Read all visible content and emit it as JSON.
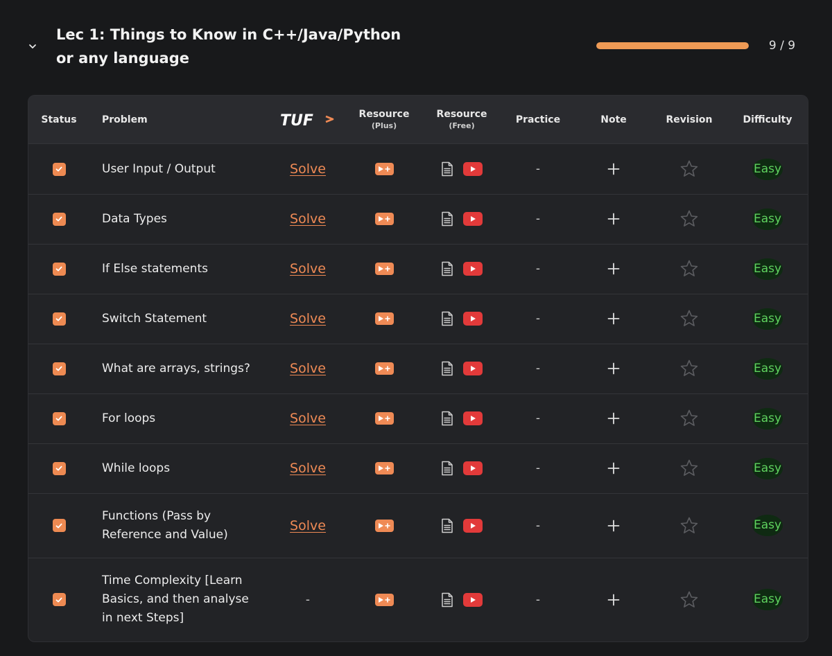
{
  "lecture": {
    "title": "Lec 1: Things to Know in C++/Java/Python or any language",
    "progress_text": "9 / 9",
    "progress_fraction": 1.0,
    "accent_color": "#ee9a55"
  },
  "table": {
    "headers": {
      "status": "Status",
      "problem": "Problem",
      "tuf_logo": "TUF",
      "resource_plus": "Resource",
      "resource_plus_sub": "(Plus)",
      "resource_free": "Resource",
      "resource_free_sub": "(Free)",
      "practice": "Practice",
      "note": "Note",
      "revision": "Revision",
      "difficulty": "Difficulty"
    },
    "rows": [
      {
        "name": "User Input / Output",
        "solve": "Solve",
        "practice": "-",
        "difficulty": "Easy",
        "checked": true
      },
      {
        "name": "Data Types",
        "solve": "Solve",
        "practice": "-",
        "difficulty": "Easy",
        "checked": true
      },
      {
        "name": "If Else statements",
        "solve": "Solve",
        "practice": "-",
        "difficulty": "Easy",
        "checked": true
      },
      {
        "name": "Switch Statement",
        "solve": "Solve",
        "practice": "-",
        "difficulty": "Easy",
        "checked": true
      },
      {
        "name": "What are arrays, strings?",
        "solve": "Solve",
        "practice": "-",
        "difficulty": "Easy",
        "checked": true
      },
      {
        "name": "For loops",
        "solve": "Solve",
        "practice": "-",
        "difficulty": "Easy",
        "checked": true
      },
      {
        "name": "While loops",
        "solve": "Solve",
        "practice": "-",
        "difficulty": "Easy",
        "checked": true
      },
      {
        "name": "Functions (Pass by Reference and Value)",
        "solve": "Solve",
        "practice": "-",
        "difficulty": "Easy",
        "checked": true
      },
      {
        "name": "Time Complexity [Learn Basics, and then analyse in next Steps]",
        "solve": "-",
        "practice": "-",
        "difficulty": "Easy",
        "checked": true
      }
    ]
  },
  "icons": {
    "collapse": "chevron-down-icon",
    "status": "checkmark-icon",
    "resource_plus": "video-plus-icon",
    "article": "article-icon",
    "video": "youtube-icon",
    "note": "plus-icon",
    "revision": "star-icon"
  },
  "colors": {
    "background": "#18191b",
    "card": "#222326",
    "header_row": "#2a2b2f",
    "easy": "#5fd35f",
    "youtube": "#e23a3a"
  }
}
